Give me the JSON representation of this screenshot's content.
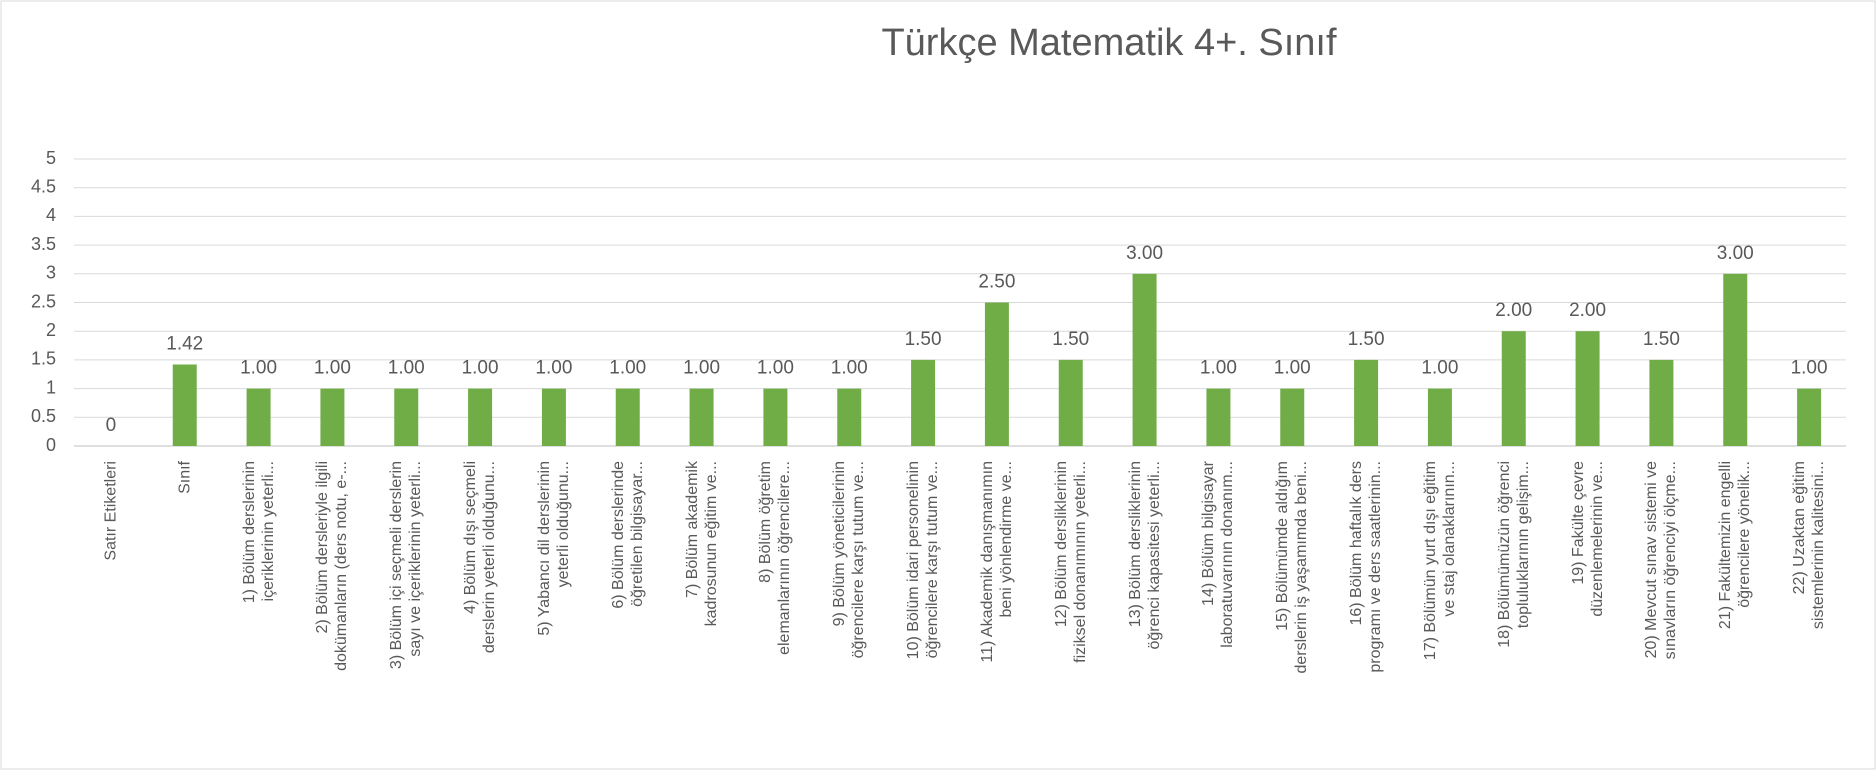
{
  "chart_data": {
    "type": "bar",
    "title": "Türkçe Matematik 4+. Sınıf",
    "categories": [
      "Satır Etiketleri",
      "Sınıf",
      "1) Bölüm derslerinin\niçeriklerinin yeterli...",
      "2) Bölüm dersleriyle ilgili\ndokümanların (ders notu, e-...",
      "3) Bölüm içi seçmeli derslerin\nsayı ve içeriklerinin yeterli...",
      "4) Bölüm dışı seçmeli\nderslerin yeterli olduğunu...",
      "5) Yabancı dil derslerinin\nyeterli olduğunu...",
      "6) Bölüm derslerinde\nöğretilen bilgisayar...",
      "7) Bölüm akademik\nkadrosunun eğitim ve...",
      "8) Bölüm öğretim\nelemanlarının öğrencilere...",
      "9) Bölüm yöneticilerinin\nöğrencilere karşı tutum ve...",
      "10) Bölüm idari personelinin\nöğrencilere karşı tutum ve...",
      "11) Akademik danışmanımın\nbeni yönlendirme ve...",
      "12) Bölüm dersliklerinin\nfiziksel donanımının yeterli...",
      "13) Bölüm dersliklerinin\nöğrenci kapasitesi yeterli...",
      "14) Bölüm bilgisayar\nlaboratuvarının donanım...",
      "15) Bölümümde aldığım\nderslerin iş yaşamımda beni...",
      "16) Bölüm haftalık ders\nprogramı ve ders saatlerinin...",
      "17) Bölümün yurt dışı eğitim\nve staj olanaklarının...",
      "18) Bölümümüzün öğrenci\ntopluluklarının gelişim...",
      "19) Fakülte çevre\ndüzenlemelerinin ve...",
      "20) Mevcut sınav sistemi ve\nsınavların öğrenciyi ölçme...",
      "21) Fakültemizin engelli\nöğrencilere yönelik...",
      "22) Uzaktan eğitim\nsistemlerinin kalitesini..."
    ],
    "values": [
      0,
      1.42,
      1,
      1,
      1,
      1,
      1,
      1,
      1,
      1,
      1,
      1.5,
      2.5,
      1.5,
      3,
      1,
      1,
      1.5,
      1,
      2,
      2,
      1.5,
      3,
      1
    ],
    "value_labels": [
      "0",
      "1.42",
      "1.00",
      "1.00",
      "1.00",
      "1.00",
      "1.00",
      "1.00",
      "1.00",
      "1.00",
      "1.00",
      "1.50",
      "2.50",
      "1.50",
      "3.00",
      "1.00",
      "1.00",
      "1.50",
      "1.00",
      "2.00",
      "2.00",
      "1.50",
      "3.00",
      "1.00"
    ],
    "color": "#70ad47",
    "ylim": [
      0,
      5
    ],
    "yticks": [
      0,
      0.5,
      1,
      1.5,
      2,
      2.5,
      3,
      3.5,
      4,
      4.5,
      5
    ],
    "grid": true
  }
}
